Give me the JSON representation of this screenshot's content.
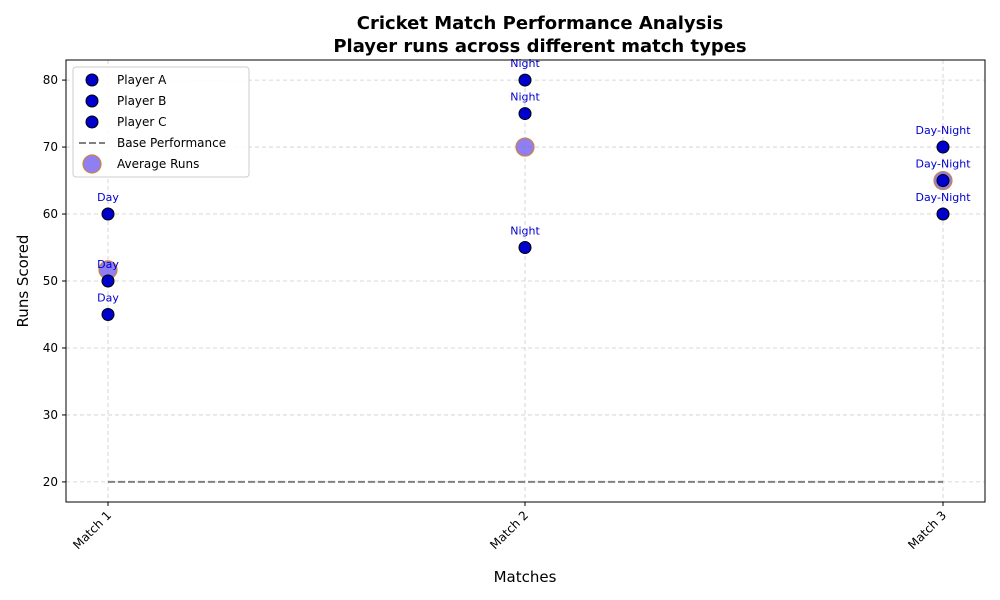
{
  "chart_data": {
    "type": "scatter",
    "title": "Cricket Match Performance Analysis",
    "subtitle": "Player runs across different match types",
    "xlabel": "Matches",
    "ylabel": "Runs Scored",
    "categories": [
      "Match 1",
      "Match 2",
      "Match 3"
    ],
    "ylim": [
      17,
      83
    ],
    "yticks": [
      20,
      30,
      40,
      50,
      60,
      70,
      80
    ],
    "grid": true,
    "legend_position": "top-left",
    "series": [
      {
        "name": "Player A",
        "values": [
          50,
          75,
          65
        ],
        "labels": [
          "Day",
          "Night",
          "Day-Night"
        ]
      },
      {
        "name": "Player B",
        "values": [
          45,
          55,
          60
        ],
        "labels": [
          "Day",
          "Night",
          "Day-Night"
        ]
      },
      {
        "name": "Player C",
        "values": [
          60,
          80,
          70
        ],
        "labels": [
          "Day",
          "Night",
          "Day-Night"
        ]
      }
    ],
    "base_line": {
      "name": "Base Performance",
      "value": 20
    },
    "average": {
      "name": "Average Runs",
      "values": [
        51.67,
        70,
        65
      ]
    },
    "colors": {
      "point": "#0000cd",
      "point_edge": "#000000",
      "label": "#0000cd",
      "average_fill": "#7b68ee",
      "average_edge": "#cd853f",
      "base_line": "#808080",
      "grid": "#cccccc"
    }
  }
}
